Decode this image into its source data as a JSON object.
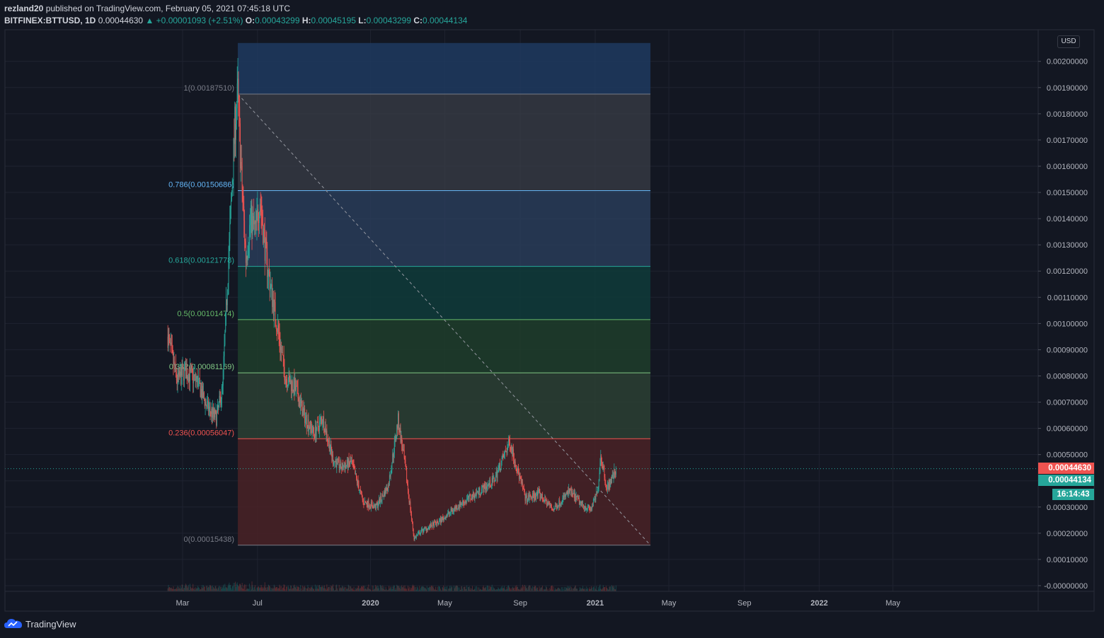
{
  "header": {
    "author": "rezland20",
    "published_text": "published on TradingView.com, February 05, 2021 07:45:18 UTC",
    "symbol": "BITFINEX:BTTUSD, 1D",
    "last": "0.00044630",
    "change": "+0.00001093 (+2.51%)",
    "o_label": "O:",
    "o": "0.00043299",
    "h_label": "H:",
    "h": "0.00045195",
    "l_label": "L:",
    "l": "0.00043299",
    "c_label": "C:",
    "c": "0.00044134"
  },
  "price_scale": {
    "currency": "USD",
    "last_price_tag": "0.00044630",
    "close_price_tag": "0.00044134",
    "countdown": "16:14:43"
  },
  "footer": {
    "brand": "TradingView"
  },
  "colors": {
    "up": "#26a69a",
    "down": "#ef5350",
    "background": "#131722",
    "grid": "#1f2330"
  },
  "chart_data": {
    "type": "candlestick",
    "ylim": [
      0,
      0.0021
    ],
    "y_ticks": [
      "0.00200000",
      "0.00190000",
      "0.00180000",
      "0.00170000",
      "0.00160000",
      "0.00150000",
      "0.00140000",
      "0.00130000",
      "0.00120000",
      "0.00110000",
      "0.00100000",
      "0.00090000",
      "0.00080000",
      "0.00070000",
      "0.00060000",
      "0.00050000",
      "0.00040000",
      "0.00030000",
      "0.00020000",
      "0.00010000",
      "-0.00000000"
    ],
    "y_tick_values": [
      0.002,
      0.0019,
      0.0018,
      0.0017,
      0.0016,
      0.0015,
      0.0014,
      0.0013,
      0.0012,
      0.0011,
      0.001,
      0.0009,
      0.0008,
      0.0007,
      0.0006,
      0.0005,
      0.0004,
      0.0003,
      0.0002,
      0.0001,
      0
    ],
    "x_ticks": [
      {
        "label": "Mar",
        "date": "2019-03-01"
      },
      {
        "label": "Jul",
        "date": "2019-07-01"
      },
      {
        "label": "2020",
        "date": "2020-01-01"
      },
      {
        "label": "May",
        "date": "2020-05-01"
      },
      {
        "label": "Sep",
        "date": "2020-09-01"
      },
      {
        "label": "2021",
        "date": "2021-01-01"
      },
      {
        "label": "May",
        "date": "2021-05-01"
      },
      {
        "label": "Sep",
        "date": "2021-09-01"
      },
      {
        "label": "2022",
        "date": "2022-01-01"
      },
      {
        "label": "May",
        "date": "2022-05-01"
      }
    ],
    "price_path": [
      {
        "date": "2019-02-05",
        "price": 0.00095
      },
      {
        "date": "2019-02-20",
        "price": 0.00078
      },
      {
        "date": "2019-03-05",
        "price": 0.00082
      },
      {
        "date": "2019-03-25",
        "price": 0.00078
      },
      {
        "date": "2019-04-10",
        "price": 0.00068
      },
      {
        "date": "2019-04-25",
        "price": 0.00064
      },
      {
        "date": "2019-05-05",
        "price": 0.00075
      },
      {
        "date": "2019-05-15",
        "price": 0.00125
      },
      {
        "date": "2019-05-25",
        "price": 0.00175
      },
      {
        "date": "2019-05-30",
        "price": 0.00188
      },
      {
        "date": "2019-06-05",
        "price": 0.00155
      },
      {
        "date": "2019-06-12",
        "price": 0.00125
      },
      {
        "date": "2019-06-20",
        "price": 0.0014
      },
      {
        "date": "2019-06-28",
        "price": 0.00135
      },
      {
        "date": "2019-07-05",
        "price": 0.00148
      },
      {
        "date": "2019-07-15",
        "price": 0.00125
      },
      {
        "date": "2019-07-25",
        "price": 0.0011
      },
      {
        "date": "2019-08-05",
        "price": 0.00095
      },
      {
        "date": "2019-08-15",
        "price": 0.0008
      },
      {
        "date": "2019-09-01",
        "price": 0.00075
      },
      {
        "date": "2019-09-15",
        "price": 0.00065
      },
      {
        "date": "2019-10-01",
        "price": 0.00058
      },
      {
        "date": "2019-10-15",
        "price": 0.00064
      },
      {
        "date": "2019-11-01",
        "price": 0.00048
      },
      {
        "date": "2019-11-15",
        "price": 0.00045
      },
      {
        "date": "2019-12-01",
        "price": 0.00047
      },
      {
        "date": "2019-12-20",
        "price": 0.00032
      },
      {
        "date": "2020-01-10",
        "price": 0.0003
      },
      {
        "date": "2020-01-30",
        "price": 0.00038
      },
      {
        "date": "2020-02-15",
        "price": 0.00063
      },
      {
        "date": "2020-02-25",
        "price": 0.00048
      },
      {
        "date": "2020-03-12",
        "price": 0.00018
      },
      {
        "date": "2020-03-25",
        "price": 0.00021
      },
      {
        "date": "2020-04-20",
        "price": 0.00024
      },
      {
        "date": "2020-05-20",
        "price": 0.0003
      },
      {
        "date": "2020-06-20",
        "price": 0.00035
      },
      {
        "date": "2020-07-20",
        "price": 0.0004
      },
      {
        "date": "2020-08-15",
        "price": 0.00055
      },
      {
        "date": "2020-08-25",
        "price": 0.00046
      },
      {
        "date": "2020-09-10",
        "price": 0.00033
      },
      {
        "date": "2020-10-01",
        "price": 0.00035
      },
      {
        "date": "2020-10-25",
        "price": 0.00029
      },
      {
        "date": "2020-11-20",
        "price": 0.00036
      },
      {
        "date": "2020-12-10",
        "price": 0.00031
      },
      {
        "date": "2020-12-25",
        "price": 0.00029
      },
      {
        "date": "2021-01-05",
        "price": 0.00036
      },
      {
        "date": "2021-01-10",
        "price": 0.0005
      },
      {
        "date": "2021-01-20",
        "price": 0.00037
      },
      {
        "date": "2021-02-05",
        "price": 0.0004463
      }
    ],
    "fib_retracement": {
      "start_date": "2019-05-30",
      "end_date": "2021-04-01",
      "trend_line": [
        {
          "date": "2019-05-30",
          "price": 0.0018751
        },
        {
          "date": "2021-04-01",
          "price": 0.00015438
        }
      ],
      "top_zone_price": 0.00207,
      "levels": [
        {
          "label": "1(0.00187510)",
          "price": 0.0018751,
          "color": "#787b86"
        },
        {
          "label": "0.786(0.00150686)",
          "price": 0.00150686,
          "color": "#64b5f6"
        },
        {
          "label": "0.618(0.00121778)",
          "price": 0.00121778,
          "color": "#26a69a"
        },
        {
          "label": "0.5(0.00101474)",
          "price": 0.00101474,
          "color": "#66bb6a"
        },
        {
          "label": "0.382(0.00081169)",
          "price": 0.00081169,
          "color": "#81c784"
        },
        {
          "label": "0.236(0.00056047)",
          "price": 0.00056047,
          "color": "#ef5350"
        },
        {
          "label": "0(0.00015438)",
          "price": 0.00015438,
          "color": "#787b86"
        }
      ]
    },
    "last_price": 0.0004463
  }
}
